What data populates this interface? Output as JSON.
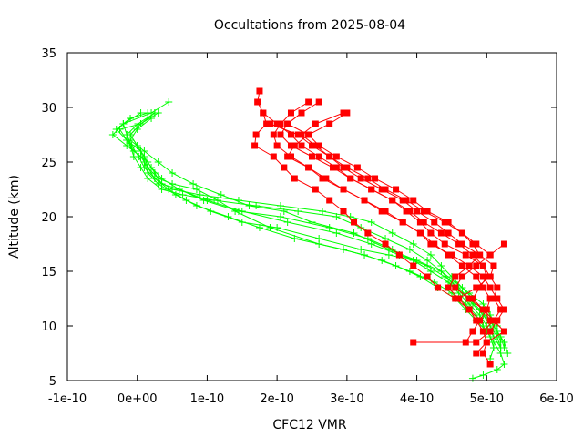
{
  "chart_data": {
    "type": "line",
    "title": "Occultations from 2025-08-04",
    "xlabel": "CFC12 VMR",
    "ylabel": "Altitude (km)",
    "xlim": [
      -1e-10,
      6e-10
    ],
    "ylim": [
      5,
      35
    ],
    "x_tick_labels": [
      "-1e-10",
      "0e+00",
      "1e-10",
      "2e-10",
      "3e-10",
      "4e-10",
      "5e-10",
      "6e-10"
    ],
    "y_tick_labels": [
      "5",
      "10",
      "15",
      "20",
      "25",
      "30",
      "35"
    ],
    "grid": false,
    "legend": "none",
    "colors": {
      "red_series": "#ff0000",
      "green_series": "#00ff00"
    },
    "markers": {
      "red_series": "square",
      "green_series": "plus"
    },
    "red_series": [
      {
        "x": [
          1.75e-10,
          1.72e-10,
          1.8e-10,
          1.85e-10,
          1.7e-10,
          1.68e-10,
          1.95e-10,
          2.1e-10,
          2.25e-10,
          2.55e-10,
          2.75e-10,
          2.95e-10,
          3.1e-10,
          3.3e-10,
          3.55e-10,
          3.75e-10,
          3.95e-10,
          4.15e-10,
          4.3e-10,
          4.55e-10,
          4.75e-10,
          4.85e-10,
          4.95e-10,
          5e-10,
          4.95e-10,
          5.05e-10,
          4.95e-10,
          4.8e-10,
          4.7e-10
        ],
        "y": [
          31.5,
          30.5,
          29.5,
          28.5,
          27.5,
          26.5,
          25.5,
          24.5,
          23.5,
          22.5,
          21.5,
          20.5,
          19.5,
          18.5,
          17.5,
          16.5,
          15.5,
          14.5,
          13.5,
          12.5,
          11.5,
          10.5,
          9.5,
          8.5,
          7.5,
          6.5,
          null,
          null,
          null
        ]
      },
      {
        "x": [
          2.45e-10,
          2.2e-10,
          2.05e-10,
          1.95e-10,
          2e-10,
          2.2e-10,
          2.45e-10,
          2.7e-10,
          2.95e-10,
          3.25e-10,
          3.55e-10,
          3.8e-10,
          4.05e-10,
          4.25e-10,
          4.45e-10,
          4.65e-10,
          4.85e-10,
          4.95e-10,
          5.05e-10,
          5e-10,
          4.9e-10,
          4.8e-10,
          4.7e-10
        ],
        "y": [
          30.5,
          29.5,
          28.5,
          27.5,
          26.5,
          25.5,
          24.5,
          23.5,
          22.5,
          21.5,
          20.5,
          19.5,
          18.5,
          17.5,
          16.5,
          15.5,
          14.5,
          13.5,
          12.5,
          11.5,
          10.5,
          9.5,
          8.5
        ]
      },
      {
        "x": [
          2.6e-10,
          2.35e-10,
          2.15e-10,
          2.05e-10,
          2.2e-10,
          2.5e-10,
          2.8e-10,
          3.05e-10,
          3.35e-10,
          3.65e-10,
          3.9e-10,
          4.1e-10,
          4.35e-10,
          4.6e-10,
          4.8e-10,
          4.95e-10,
          5.05e-10,
          5.15e-10,
          5.1e-10,
          5.2e-10,
          5.1e-10,
          4.95e-10
        ],
        "y": [
          30.5,
          29.5,
          28.5,
          27.5,
          26.5,
          25.5,
          24.5,
          23.5,
          22.5,
          21.5,
          20.5,
          19.5,
          18.5,
          17.5,
          16.5,
          15.5,
          14.5,
          13.5,
          12.5,
          11.5,
          10.5,
          9.5
        ]
      },
      {
        "x": [
          3e-10,
          2.75e-10,
          2.45e-10,
          2.25e-10,
          2.15e-10,
          2.45e-10,
          2.65e-10,
          2.95e-10,
          3.25e-10,
          3.5e-10,
          3.8e-10,
          4.05e-10,
          4.2e-10,
          4.5e-10,
          4.75e-10,
          4.95e-10,
          5.05e-10,
          5.15e-10,
          5.25e-10,
          5.15e-10,
          5.05e-10,
          4.85e-10,
          3.95e-10
        ],
        "y": [
          29.5,
          28.5,
          27.5,
          26.5,
          25.5,
          24.5,
          23.5,
          22.5,
          21.5,
          20.5,
          19.5,
          18.5,
          17.5,
          16.5,
          15.5,
          14.5,
          13.5,
          12.5,
          11.5,
          10.5,
          9.5,
          8.5,
          8.5
        ]
      },
      {
        "x": [
          2.95e-10,
          2.55e-10,
          2.35e-10,
          2.55e-10,
          2.75e-10,
          3e-10,
          3.3e-10,
          3.55e-10,
          3.85e-10,
          4.1e-10,
          4.4e-10,
          4.65e-10,
          4.85e-10,
          5.05e-10,
          5.25e-10,
          5.05e-10,
          4.85e-10,
          4.65e-10,
          4.55e-10,
          4.75e-10,
          4.95e-10,
          5.05e-10
        ],
        "y": [
          29.5,
          28.5,
          27.5,
          26.5,
          25.5,
          24.5,
          23.5,
          22.5,
          21.5,
          20.5,
          19.5,
          18.5,
          17.5,
          16.5,
          17.5,
          16.5,
          15.5,
          14.5,
          13.5,
          12.5,
          11.5,
          10.5
        ]
      },
      {
        "x": [
          2.35e-10,
          2.15e-10,
          2.45e-10,
          2.6e-10,
          2.85e-10,
          3.15e-10,
          3.4e-10,
          3.7e-10,
          3.95e-10,
          4.15e-10,
          4.45e-10,
          4.65e-10,
          4.8e-10,
          4.9e-10,
          4.75e-10,
          4.55e-10,
          4.45e-10,
          4.6e-10,
          4.75e-10,
          4.9e-10
        ],
        "y": [
          29.5,
          28.5,
          27.5,
          26.5,
          25.5,
          24.5,
          23.5,
          22.5,
          21.5,
          20.5,
          19.5,
          18.5,
          17.5,
          16.5,
          15.5,
          14.5,
          13.5,
          12.5,
          11.5,
          10.5
        ]
      },
      {
        "x": [
          1.8e-10,
          2e-10,
          2.2e-10,
          2.35e-10,
          2.6e-10,
          2.85e-10,
          3.05e-10,
          3.35e-10,
          3.65e-10,
          3.85e-10,
          4.05e-10,
          4.2e-10,
          4.4e-10,
          4.7e-10,
          4.95e-10,
          5e-10,
          4.9e-10,
          4.8e-10,
          4.95e-10,
          5.1e-10,
          5.25e-10,
          5e-10,
          4.85e-10
        ],
        "y": [
          29.5,
          28.5,
          27.5,
          26.5,
          25.5,
          24.5,
          23.5,
          22.5,
          21.5,
          20.5,
          19.5,
          18.5,
          17.5,
          16.5,
          15.5,
          14.5,
          13.5,
          12.5,
          11.5,
          10.5,
          9.5,
          8.5,
          7.5
        ]
      },
      {
        "x": [
          1.9e-10,
          2.3e-10,
          2.5e-10,
          2.75e-10,
          2.95e-10,
          3.2e-10,
          3.5e-10,
          3.8e-10,
          4e-10,
          4.25e-10,
          4.45e-10,
          4.65e-10,
          4.9e-10,
          5.1e-10,
          5.05e-10,
          4.85e-10,
          4.6e-10
        ],
        "y": [
          28.5,
          27.5,
          26.5,
          25.5,
          24.5,
          23.5,
          22.5,
          21.5,
          20.5,
          19.5,
          18.5,
          17.5,
          16.5,
          15.5,
          14.5,
          13.5,
          12.5
        ]
      }
    ],
    "green_series": [
      {
        "x": [
          4.5e-11,
          2e-11,
          -2e-11,
          -1.5e-11,
          -8e-12,
          2e-12,
          1e-11,
          2.5e-11,
          5e-11,
          9e-11,
          1.45e-10,
          2.05e-10,
          2.65e-10,
          3.05e-10,
          3.35e-10,
          3.65e-10,
          3.95e-10,
          4.2e-10,
          4.35e-10,
          4.5e-10,
          4.65e-10,
          4.8e-10,
          4.95e-10,
          5.05e-10,
          5.15e-10,
          5.25e-10,
          5.3e-10
        ],
        "y": [
          30.5,
          29.5,
          28.5,
          27.5,
          26.5,
          25.5,
          24.5,
          23.5,
          22.5,
          22.0,
          21.5,
          21.0,
          20.5,
          20.0,
          19.5,
          18.5,
          17.5,
          16.5,
          15.5,
          14.5,
          13.5,
          12.5,
          11.5,
          10.5,
          9.5,
          8.5,
          7.5
        ]
      },
      {
        "x": [
          2.5e-11,
          1e-12,
          -1.5e-11,
          -1e-11,
          -5e-12,
          5e-12,
          1.5e-11,
          3.5e-11,
          6.5e-11,
          1.1e-10,
          1.7e-10,
          2.3e-10,
          2.85e-10,
          3.2e-10,
          3.55e-10,
          3.9e-10,
          4.15e-10,
          4.35e-10,
          4.5e-10,
          4.65e-10,
          4.8e-10,
          4.95e-10,
          5.1e-10,
          5.2e-10,
          5.25e-10
        ],
        "y": [
          29.5,
          28.5,
          27.5,
          26.5,
          25.5,
          24.5,
          23.5,
          22.5,
          22.0,
          21.5,
          21.0,
          20.5,
          20.0,
          19.0,
          18.0,
          17.0,
          16.0,
          15.0,
          14.0,
          13.0,
          12.0,
          11.0,
          10.0,
          9.0,
          8.0
        ]
      },
      {
        "x": [
          3e-11,
          5e-12,
          -2.5e-11,
          -1.5e-11,
          -5e-12,
          1.5e-11,
          2.5e-11,
          3.5e-11,
          6e-11,
          9.5e-11,
          1.45e-10,
          2.05e-10,
          2.75e-10,
          3.3e-10,
          3.65e-10,
          3.95e-10,
          4.2e-10,
          4.45e-10,
          4.6e-10,
          4.75e-10,
          4.9e-10,
          5e-10,
          5.1e-10,
          5.2e-10
        ],
        "y": [
          29.5,
          28.5,
          28.0,
          27.0,
          26.0,
          25.0,
          24.0,
          23.0,
          22.5,
          21.5,
          20.5,
          20.0,
          19.0,
          18.0,
          17.0,
          16.0,
          15.0,
          14.0,
          13.0,
          12.0,
          11.0,
          10.0,
          9.0,
          8.0
        ]
      },
      {
        "x": [
          2.5e-11,
          5e-12,
          -1e-11,
          0.0,
          1e-11,
          1.5e-11,
          2.5e-11,
          4.5e-11,
          7e-11,
          1.05e-10,
          1.5e-10,
          2e-10,
          2.6e-10,
          3.2e-10,
          3.6e-10,
          3.95e-10,
          4.2e-10,
          4.45e-10,
          4.65e-10,
          4.8e-10,
          4.95e-10,
          5.05e-10,
          5.15e-10,
          5.2e-10
        ],
        "y": [
          29.5,
          28.5,
          27.5,
          26.5,
          25.5,
          24.5,
          23.5,
          22.5,
          21.5,
          20.5,
          19.5,
          19.0,
          18.0,
          17.0,
          16.5,
          16.0,
          15.0,
          14.0,
          13.0,
          12.0,
          11.0,
          10.0,
          9.0,
          8.0
        ]
      },
      {
        "x": [
          1.5e-11,
          -1e-11,
          -3e-11,
          -1.5e-11,
          5e-12,
          1e-11,
          1.5e-11,
          3e-11,
          5.5e-11,
          8.5e-11,
          1.3e-10,
          1.75e-10,
          2.25e-10,
          2.95e-10,
          3.5e-10,
          3.9e-10,
          4.25e-10,
          4.5e-10,
          4.7e-10,
          4.85e-10,
          4.95e-10,
          5.05e-10,
          5.1e-10,
          5.05e-10
        ],
        "y": [
          29.5,
          29.0,
          28.0,
          27.0,
          26.0,
          25.0,
          24.0,
          23.0,
          22.0,
          21.0,
          20.0,
          19.0,
          18.0,
          17.0,
          16.0,
          15.0,
          14.0,
          13.0,
          12.0,
          11.0,
          10.0,
          9.0,
          8.0,
          7.0
        ]
      },
      {
        "x": [
          5e-12,
          -2e-11,
          -3.5e-11,
          -1.5e-11,
          5e-12,
          1.5e-11,
          3e-11,
          5e-11,
          8.5e-11,
          1.15e-10,
          1.4e-10,
          1.9e-10,
          2.6e-10,
          3.25e-10,
          3.7e-10,
          4.05e-10,
          4.3e-10,
          4.55e-10,
          4.7e-10,
          4.85e-10,
          5e-10,
          5.1e-10,
          5.2e-10,
          5.25e-10,
          5.15e-10,
          4.95e-10,
          4.8e-10
        ],
        "y": [
          29.5,
          28.5,
          27.5,
          26.5,
          25.5,
          24.5,
          23.5,
          23.0,
          22.5,
          21.5,
          20.5,
          19.0,
          17.5,
          16.5,
          15.5,
          14.5,
          13.5,
          12.5,
          11.5,
          10.5,
          9.5,
          8.5,
          7.5,
          6.5,
          6.0,
          5.5,
          5.2
        ]
      },
      {
        "x": [
          5e-12,
          -1e-11,
          0.0,
          1e-11,
          2e-11,
          3.5e-11,
          6e-11,
          1e-10,
          1.5e-10,
          2.15e-10,
          2.85e-10,
          3.35e-10,
          3.75e-10,
          4.15e-10,
          4.4e-10,
          4.6e-10,
          4.75e-10,
          4.9e-10,
          5.05e-10,
          5.15e-10,
          5.2e-10
        ],
        "y": [
          28.5,
          27.5,
          26.5,
          25.5,
          24.5,
          23.5,
          22.5,
          21.5,
          20.5,
          19.5,
          18.5,
          17.5,
          16.5,
          15.5,
          14.5,
          13.5,
          12.5,
          11.5,
          10.5,
          9.5,
          8.5
        ]
      },
      {
        "x": [
          2e-11,
          0.0,
          -1e-11,
          1e-11,
          3e-11,
          5e-11,
          8e-11,
          1.2e-10,
          1.6e-10,
          2.1e-10,
          2.5e-10,
          3.1e-10,
          3.6e-10,
          4e-10,
          4.35e-10,
          4.55e-10,
          4.75e-10,
          4.95e-10,
          5.05e-10,
          5.15e-10
        ],
        "y": [
          29.0,
          28.0,
          27.0,
          26.0,
          25.0,
          24.0,
          23.0,
          22.0,
          21.0,
          20.5,
          19.5,
          18.5,
          17.0,
          16.0,
          15.0,
          14.0,
          13.0,
          12.0,
          11.0,
          10.0
        ]
      }
    ]
  }
}
